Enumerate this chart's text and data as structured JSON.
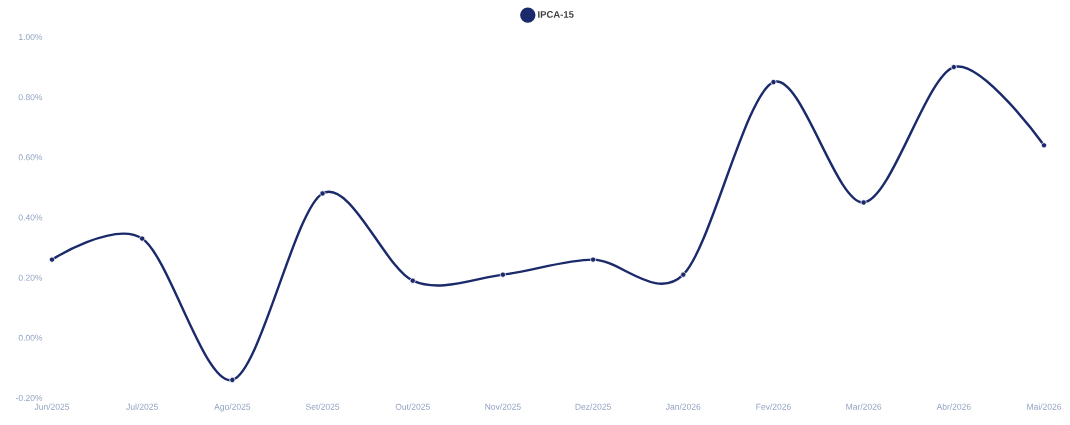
{
  "chart_data": {
    "type": "line",
    "categories": [
      "Jun/2025",
      "Jul/2025",
      "Ago/2025",
      "Set/2025",
      "Out/2025",
      "Nov/2025",
      "Dez/2025",
      "Jan/2026",
      "Fev/2026",
      "Mar/2026",
      "Abr/2026",
      "Mai/2026"
    ],
    "series": [
      {
        "name": "IPCA-15",
        "color": "#1b2a6b",
        "values": [
          0.26,
          0.33,
          -0.14,
          0.48,
          0.19,
          0.21,
          0.26,
          0.21,
          0.85,
          0.45,
          0.9,
          0.64
        ]
      }
    ],
    "ylim": [
      -0.2,
      1.0
    ],
    "yticks": [
      {
        "value": -0.2,
        "label": "-0.20%"
      },
      {
        "value": 0.0,
        "label": "0.00%"
      },
      {
        "value": 0.2,
        "label": "0.20%"
      },
      {
        "value": 0.4,
        "label": "0.40%"
      },
      {
        "value": 0.6,
        "label": "0.60%"
      },
      {
        "value": 0.8,
        "label": "0.80%"
      },
      {
        "value": 1.0,
        "label": "1.00%"
      }
    ],
    "legend": "top",
    "marker": "circle",
    "line_style": "solid"
  }
}
